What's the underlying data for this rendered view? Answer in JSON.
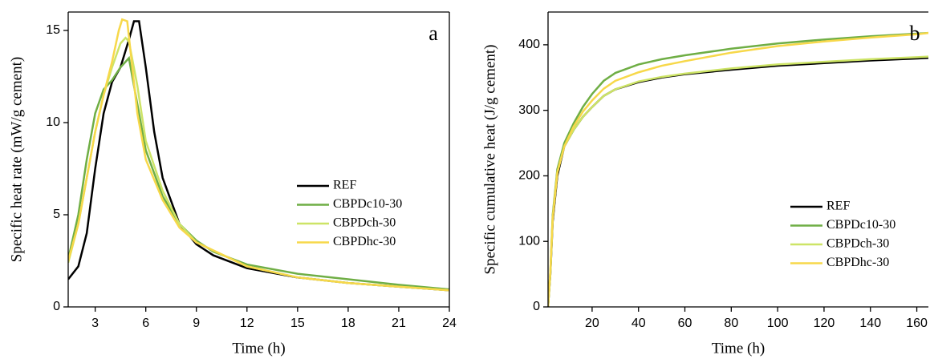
{
  "chart_data": [
    {
      "type": "line",
      "annotation": "a",
      "x_label": "Time (h)",
      "y_label": "Specific heat rate (mW/g cement)",
      "xlim": [
        1.4,
        24
      ],
      "xticks": [
        3,
        6,
        9,
        12,
        15,
        18,
        21,
        24
      ],
      "ylim": [
        0,
        16
      ],
      "yticks": [
        0,
        5,
        10,
        15
      ],
      "series": [
        {
          "name": "REF",
          "color": "#000000",
          "x": [
            1.4,
            2,
            2.5,
            3,
            3.5,
            4,
            4.5,
            5,
            5.3,
            5.6,
            6,
            6.5,
            7,
            8,
            9,
            10,
            12,
            15,
            18,
            21,
            24
          ],
          "values": [
            1.5,
            2.2,
            4,
            7.5,
            10.5,
            12.2,
            13,
            14.5,
            15.5,
            15.5,
            13,
            9.5,
            7,
            4.5,
            3.4,
            2.8,
            2.1,
            1.6,
            1.3,
            1.1,
            0.9
          ]
        },
        {
          "name": "CBPDc10-30",
          "color": "#6fae45",
          "x": [
            1.4,
            2,
            2.5,
            3,
            3.5,
            4,
            4.5,
            5,
            5.5,
            6,
            7,
            8,
            9,
            10,
            12,
            15,
            18,
            21,
            24
          ],
          "values": [
            2.6,
            5,
            8,
            10.5,
            11.8,
            12.3,
            13,
            13.5,
            11,
            8.5,
            6,
            4.5,
            3.6,
            3,
            2.3,
            1.8,
            1.5,
            1.2,
            0.95
          ]
        },
        {
          "name": "CBPDch-30",
          "color": "#cde466",
          "x": [
            1.4,
            2,
            2.5,
            3,
            3.5,
            4,
            4.5,
            4.8,
            5,
            5.5,
            6,
            7,
            8,
            9,
            12,
            15,
            18,
            21,
            24
          ],
          "values": [
            2.4,
            4.5,
            7,
            9.5,
            11.5,
            13,
            14.3,
            14.6,
            14.4,
            12,
            9,
            6.3,
            4.5,
            3.5,
            2.2,
            1.6,
            1.3,
            1.1,
            0.9
          ]
        },
        {
          "name": "CBPDhc-30",
          "color": "#f7d84a",
          "x": [
            1.4,
            2,
            2.5,
            3,
            3.5,
            4,
            4.4,
            4.6,
            4.9,
            5.2,
            5.5,
            6,
            7,
            8,
            9,
            12,
            15,
            18,
            21,
            24
          ],
          "values": [
            2.5,
            4.5,
            7,
            9.5,
            11.5,
            13.3,
            15,
            15.6,
            15.5,
            13,
            10.5,
            8,
            5.8,
            4.3,
            3.5,
            2.2,
            1.6,
            1.3,
            1.1,
            0.9
          ]
        }
      ]
    },
    {
      "type": "line",
      "annotation": "b",
      "x_label": "Time (h)",
      "y_label": "Specific cumulative heat (J/g cement)",
      "xlim": [
        1,
        165
      ],
      "xticks": [
        20,
        40,
        60,
        80,
        100,
        120,
        140,
        160
      ],
      "ylim": [
        0,
        450
      ],
      "yticks": [
        0,
        100,
        200,
        300,
        400
      ],
      "series": [
        {
          "name": "REF",
          "color": "#000000",
          "x": [
            1,
            2,
            3,
            5,
            8,
            12,
            16,
            20,
            25,
            30,
            40,
            50,
            60,
            80,
            100,
            120,
            140,
            160,
            165
          ],
          "values": [
            0,
            50,
            130,
            200,
            245,
            270,
            290,
            305,
            322,
            332,
            343,
            350,
            355,
            362,
            368,
            372,
            376,
            379,
            380
          ]
        },
        {
          "name": "CBPDc10-30",
          "color": "#6fae45",
          "x": [
            1,
            2,
            3,
            5,
            8,
            12,
            16,
            20,
            25,
            30,
            40,
            50,
            60,
            80,
            100,
            120,
            140,
            160,
            165
          ],
          "values": [
            0,
            55,
            140,
            210,
            250,
            280,
            305,
            325,
            345,
            357,
            370,
            378,
            384,
            394,
            402,
            408,
            413,
            417,
            418
          ]
        },
        {
          "name": "CBPDch-30",
          "color": "#cde466",
          "x": [
            1,
            2,
            3,
            5,
            8,
            12,
            16,
            20,
            25,
            30,
            40,
            50,
            60,
            80,
            100,
            120,
            140,
            160,
            165
          ],
          "values": [
            0,
            50,
            135,
            205,
            245,
            270,
            290,
            305,
            322,
            332,
            344,
            351,
            356,
            364,
            370,
            374,
            378,
            381,
            382
          ]
        },
        {
          "name": "CBPDhc-30",
          "color": "#f7d84a",
          "x": [
            1,
            2,
            3,
            5,
            8,
            12,
            16,
            20,
            25,
            30,
            40,
            50,
            60,
            80,
            100,
            120,
            140,
            160,
            165
          ],
          "values": [
            0,
            55,
            135,
            205,
            245,
            275,
            298,
            315,
            333,
            345,
            358,
            368,
            375,
            388,
            398,
            405,
            411,
            416,
            418
          ]
        }
      ]
    }
  ]
}
